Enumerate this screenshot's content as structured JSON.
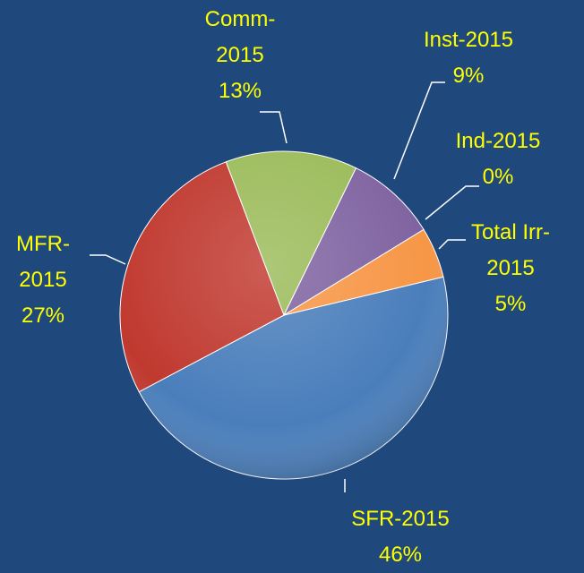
{
  "chart_data": {
    "type": "pie",
    "categories": [
      "SFR-2015",
      "MFR-2015",
      "Comm-2015",
      "Inst-2015",
      "Ind-2015",
      "Total Irr-2015"
    ],
    "values": [
      46,
      27,
      13,
      9,
      0,
      5
    ],
    "value_labels": [
      "46%",
      "27%",
      "13%",
      "9%",
      "0%",
      "5%"
    ],
    "colors": [
      "#4a7ebb",
      "#c0392f",
      "#9bbb59",
      "#7f63a1",
      "#4bacc6",
      "#f79646"
    ]
  }
}
